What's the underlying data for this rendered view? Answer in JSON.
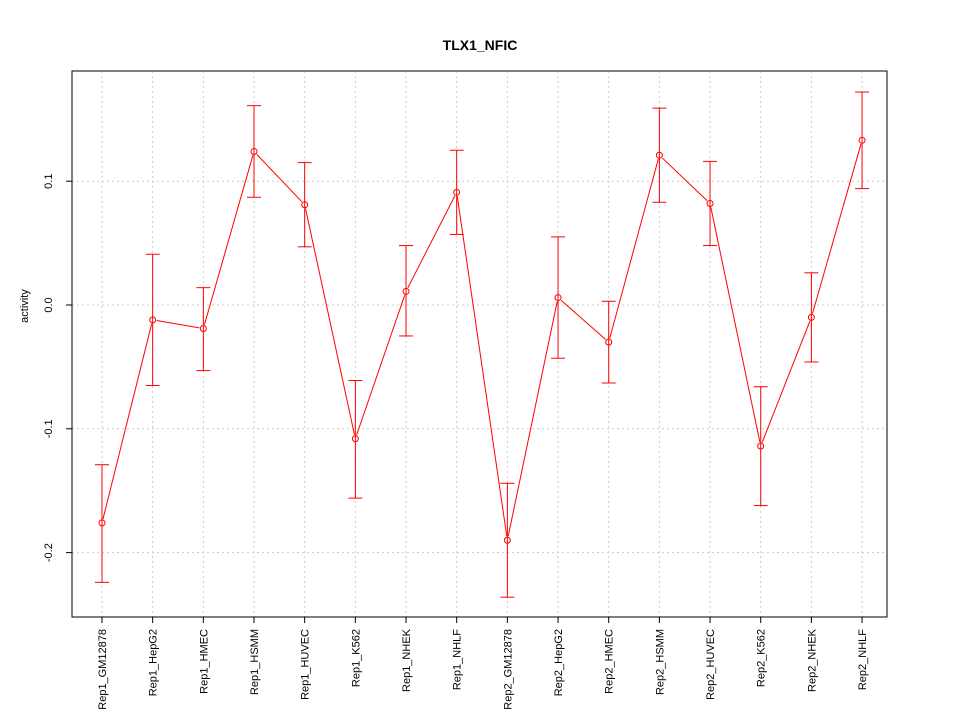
{
  "chart_data": {
    "type": "line",
    "title": "TLX1_NFIC",
    "xlabel": "",
    "ylabel": "activity",
    "categories": [
      "Rep1_GM12878",
      "Rep1_HepG2",
      "Rep1_HMEC",
      "Rep1_HSMM",
      "Rep1_HUVEC",
      "Rep1_K562",
      "Rep1_NHEK",
      "Rep1_NHLF",
      "Rep2_GM12878",
      "Rep2_HepG2",
      "Rep2_HMEC",
      "Rep2_HSMM",
      "Rep2_HUVEC",
      "Rep2_K562",
      "Rep2_NHEK",
      "Rep2_NHLF"
    ],
    "values": [
      -0.176,
      -0.012,
      -0.019,
      0.124,
      0.081,
      -0.108,
      0.011,
      0.091,
      -0.19,
      0.006,
      -0.03,
      0.121,
      0.082,
      -0.114,
      -0.01,
      0.133
    ],
    "err_low": [
      -0.224,
      -0.065,
      -0.053,
      0.087,
      0.047,
      -0.156,
      -0.025,
      0.057,
      -0.236,
      -0.043,
      -0.063,
      0.083,
      0.048,
      -0.162,
      -0.046,
      0.094
    ],
    "err_high": [
      -0.129,
      0.041,
      0.014,
      0.161,
      0.115,
      -0.061,
      0.048,
      0.125,
      -0.144,
      0.055,
      0.003,
      0.159,
      0.116,
      -0.066,
      0.026,
      0.172
    ],
    "yticks": [
      -0.2,
      -0.1,
      0.0,
      0.1
    ],
    "ytick_labels": [
      "-0.2",
      "-0.1",
      "0.0",
      "0.1"
    ],
    "ylim": [
      -0.252,
      0.189
    ],
    "grid": true,
    "series_color": "#ff0000",
    "grid_color": "#cccccc"
  }
}
